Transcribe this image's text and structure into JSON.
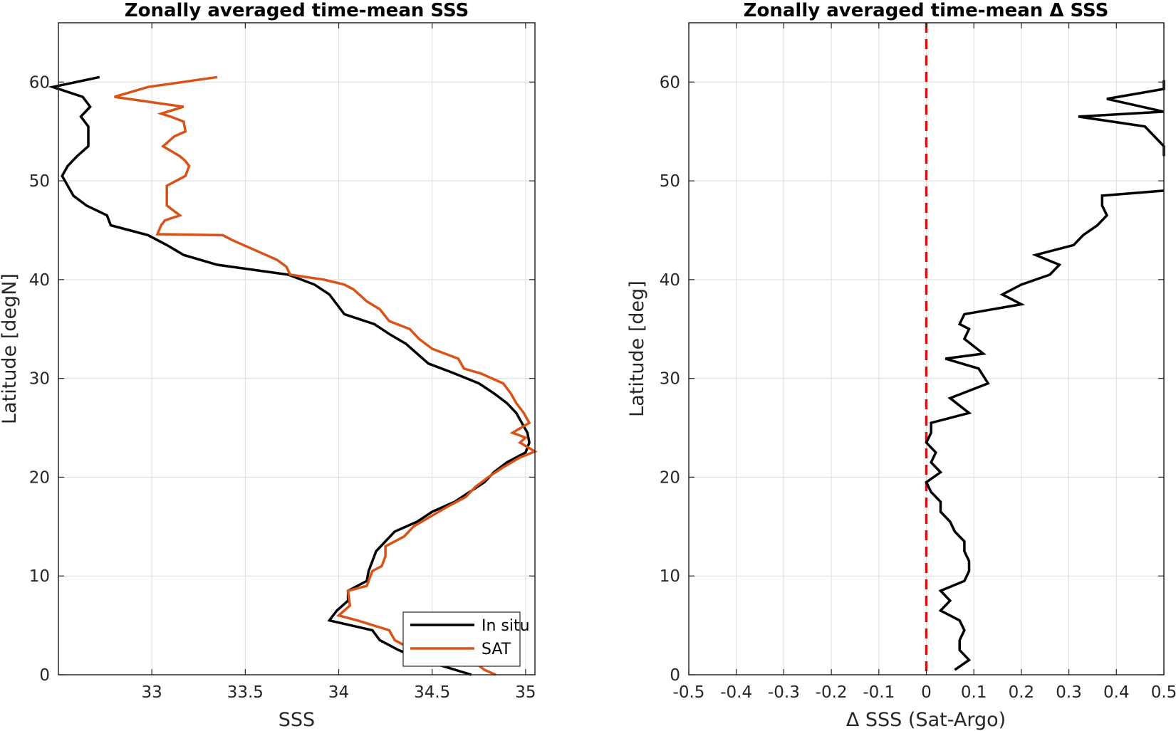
{
  "chart_data": [
    {
      "type": "line",
      "title": "Zonally averaged time-mean SSS",
      "xlabel": "SSS",
      "ylabel": "Latitude [degN]",
      "xlim": [
        32.5,
        35.05
      ],
      "ylim": [
        0,
        66
      ],
      "xticks": [
        33,
        33.5,
        34,
        34.5,
        35
      ],
      "xticklabels": [
        "33",
        "33.5",
        "34",
        "34.5",
        "35"
      ],
      "yticks": [
        0,
        10,
        20,
        30,
        40,
        50,
        60
      ],
      "yticklabels": [
        "0",
        "10",
        "20",
        "30",
        "40",
        "50",
        "60"
      ],
      "grid": true,
      "legend_position": "bottom-right",
      "series": [
        {
          "name": "In situ",
          "color": "#000000",
          "points": [
            [
              34.71,
              0
            ],
            [
              34.45,
              1.5
            ],
            [
              34.32,
              2.5
            ],
            [
              34.22,
              3.5
            ],
            [
              34.18,
              4.5
            ],
            [
              33.95,
              5.5
            ],
            [
              33.99,
              6.5
            ],
            [
              34.05,
              7.5
            ],
            [
              34.05,
              8.5
            ],
            [
              34.15,
              9.5
            ],
            [
              34.16,
              10.5
            ],
            [
              34.18,
              11.5
            ],
            [
              34.2,
              12.5
            ],
            [
              34.25,
              13.5
            ],
            [
              34.3,
              14.5
            ],
            [
              34.42,
              15.5
            ],
            [
              34.5,
              16.5
            ],
            [
              34.62,
              17.5
            ],
            [
              34.7,
              18.5
            ],
            [
              34.78,
              19.5
            ],
            [
              34.83,
              20.5
            ],
            [
              34.9,
              21.5
            ],
            [
              35.0,
              22.5
            ],
            [
              35.02,
              23.5
            ],
            [
              35.01,
              24.5
            ],
            [
              34.98,
              25.5
            ],
            [
              34.95,
              26.5
            ],
            [
              34.9,
              27.5
            ],
            [
              34.83,
              28.5
            ],
            [
              34.75,
              29.5
            ],
            [
              34.62,
              30.5
            ],
            [
              34.48,
              31.5
            ],
            [
              34.42,
              32.5
            ],
            [
              34.36,
              33.5
            ],
            [
              34.27,
              34.5
            ],
            [
              34.19,
              35.5
            ],
            [
              34.03,
              36.5
            ],
            [
              33.99,
              37.5
            ],
            [
              33.95,
              38.5
            ],
            [
              33.87,
              39.5
            ],
            [
              33.73,
              40.5
            ],
            [
              33.35,
              41.5
            ],
            [
              33.17,
              42.5
            ],
            [
              33.08,
              43.5
            ],
            [
              32.98,
              44.5
            ],
            [
              32.78,
              45.5
            ],
            [
              32.76,
              46.5
            ],
            [
              32.65,
              47.5
            ],
            [
              32.58,
              48.5
            ],
            [
              32.55,
              49.5
            ],
            [
              32.52,
              50.5
            ],
            [
              32.55,
              51.5
            ],
            [
              32.6,
              52.5
            ],
            [
              32.66,
              53.5
            ],
            [
              32.66,
              54.5
            ],
            [
              32.66,
              55.5
            ],
            [
              32.62,
              56.5
            ],
            [
              32.67,
              57.5
            ],
            [
              32.63,
              58.5
            ],
            [
              32.47,
              59.5
            ],
            [
              32.72,
              60.5
            ]
          ]
        },
        {
          "name": "SAT",
          "color": "#d95319",
          "points": [
            [
              34.84,
              0
            ],
            [
              34.78,
              0.5
            ],
            [
              34.71,
              1.5
            ],
            [
              34.4,
              2.5
            ],
            [
              34.3,
              3.5
            ],
            [
              34.27,
              4.5
            ],
            [
              34.1,
              5.5
            ],
            [
              34.0,
              6
            ],
            [
              34.06,
              7
            ],
            [
              34.05,
              8.5
            ],
            [
              34.15,
              9
            ],
            [
              34.18,
              10.5
            ],
            [
              34.23,
              11
            ],
            [
              34.25,
              12
            ],
            [
              34.25,
              13
            ],
            [
              34.35,
              14
            ],
            [
              34.4,
              15
            ],
            [
              34.49,
              16
            ],
            [
              34.58,
              17
            ],
            [
              34.68,
              18
            ],
            [
              34.73,
              19
            ],
            [
              34.8,
              20
            ],
            [
              34.88,
              21
            ],
            [
              34.97,
              22
            ],
            [
              35.05,
              22.6
            ],
            [
              34.97,
              23.5
            ],
            [
              35.0,
              24
            ],
            [
              34.93,
              24.5
            ],
            [
              35.02,
              25.5
            ],
            [
              34.99,
              26.5
            ],
            [
              34.95,
              27.5
            ],
            [
              34.92,
              28.5
            ],
            [
              34.88,
              29.5
            ],
            [
              34.76,
              30.5
            ],
            [
              34.67,
              31
            ],
            [
              34.64,
              32
            ],
            [
              34.5,
              33
            ],
            [
              34.43,
              34
            ],
            [
              34.38,
              35
            ],
            [
              34.27,
              35.8
            ],
            [
              34.22,
              37
            ],
            [
              34.15,
              37.8
            ],
            [
              34.08,
              39
            ],
            [
              34.03,
              39.5
            ],
            [
              33.92,
              40
            ],
            [
              33.74,
              40.5
            ],
            [
              33.72,
              41.3
            ],
            [
              33.67,
              42
            ],
            [
              33.55,
              43
            ],
            [
              33.43,
              44
            ],
            [
              33.38,
              44.5
            ],
            [
              33.03,
              44.6
            ],
            [
              33.05,
              45.5
            ],
            [
              33.07,
              46
            ],
            [
              33.15,
              46.5
            ],
            [
              33.08,
              47.5
            ],
            [
              33.08,
              48.5
            ],
            [
              33.08,
              49.5
            ],
            [
              33.18,
              50.5
            ],
            [
              33.2,
              51.5
            ],
            [
              33.18,
              52
            ],
            [
              33.15,
              52.5
            ],
            [
              33.06,
              53.5
            ],
            [
              33.12,
              54.5
            ],
            [
              33.18,
              55
            ],
            [
              33.17,
              56
            ],
            [
              33.1,
              56.5
            ],
            [
              33.05,
              56.8
            ],
            [
              33.17,
              57.5
            ],
            [
              32.8,
              58.5
            ],
            [
              32.98,
              59.5
            ],
            [
              33.35,
              60.5
            ]
          ]
        }
      ]
    },
    {
      "type": "line",
      "title": "Zonally averaged time-mean Δ SSS",
      "xlabel": "Δ SSS (Sat-Argo)",
      "ylabel": "Latitude [deg]",
      "xlim": [
        -0.5,
        0.5
      ],
      "ylim": [
        0,
        66
      ],
      "xticks": [
        -0.5,
        -0.4,
        -0.3,
        -0.2,
        -0.1,
        0,
        0.1,
        0.2,
        0.3,
        0.4,
        0.5
      ],
      "xticklabels": [
        "-0.5",
        "-0.4",
        "-0.3",
        "-0.2",
        "-0.1",
        "0",
        "0.1",
        "0.2",
        "0.3",
        "0.4",
        "0.5"
      ],
      "yticks": [
        0,
        10,
        20,
        30,
        40,
        50,
        60
      ],
      "yticklabels": [
        "0",
        "10",
        "20",
        "30",
        "40",
        "50",
        "60"
      ],
      "grid": true,
      "reference_line": {
        "x": 0,
        "color": "#ff0000",
        "style": "dashed"
      },
      "series": [
        {
          "color": "#000000",
          "segments": [
            [
              [
                0.06,
                0.5
              ],
              [
                0.09,
                1.5
              ],
              [
                0.07,
                2.5
              ],
              [
                0.07,
                3.5
              ],
              [
                0.08,
                4.5
              ],
              [
                0.07,
                5.5
              ],
              [
                0.03,
                6.5
              ],
              [
                0.05,
                7.5
              ],
              [
                0.03,
                8.5
              ],
              [
                0.08,
                9.5
              ],
              [
                0.09,
                10.5
              ],
              [
                0.09,
                11.5
              ],
              [
                0.08,
                12.5
              ],
              [
                0.08,
                13.5
              ],
              [
                0.06,
                14.5
              ],
              [
                0.05,
                15.5
              ],
              [
                0.03,
                16.5
              ],
              [
                0.03,
                17.5
              ],
              [
                0.01,
                18.5
              ],
              [
                0.0,
                19.5
              ],
              [
                0.03,
                20.5
              ],
              [
                0.01,
                21.5
              ],
              [
                0.02,
                22.5
              ],
              [
                0.0,
                23.5
              ],
              [
                0.01,
                24.5
              ],
              [
                0.01,
                25.5
              ],
              [
                0.09,
                26.5
              ],
              [
                0.05,
                28
              ],
              [
                0.13,
                29.5
              ],
              [
                0.11,
                31
              ],
              [
                0.04,
                32
              ],
              [
                0.12,
                32.5
              ],
              [
                0.08,
                34
              ],
              [
                0.09,
                35
              ],
              [
                0.07,
                35.5
              ],
              [
                0.08,
                36.5
              ],
              [
                0.2,
                37.5
              ],
              [
                0.16,
                38.5
              ],
              [
                0.2,
                39.5
              ],
              [
                0.26,
                40.5
              ],
              [
                0.28,
                41.5
              ],
              [
                0.23,
                42.5
              ],
              [
                0.31,
                43.5
              ],
              [
                0.33,
                44.5
              ],
              [
                0.36,
                45.5
              ],
              [
                0.38,
                46.5
              ],
              [
                0.37,
                47.5
              ],
              [
                0.37,
                48.5
              ],
              [
                0.5,
                49
              ]
            ],
            [
              [
                0.5,
                52.5
              ],
              [
                0.5,
                53.5
              ],
              [
                0.46,
                55.5
              ],
              [
                0.32,
                56.5
              ],
              [
                0.5,
                57
              ],
              [
                0.38,
                58.3
              ],
              [
                0.5,
                59.3
              ],
              [
                0.5,
                60.2
              ]
            ]
          ]
        }
      ]
    }
  ]
}
